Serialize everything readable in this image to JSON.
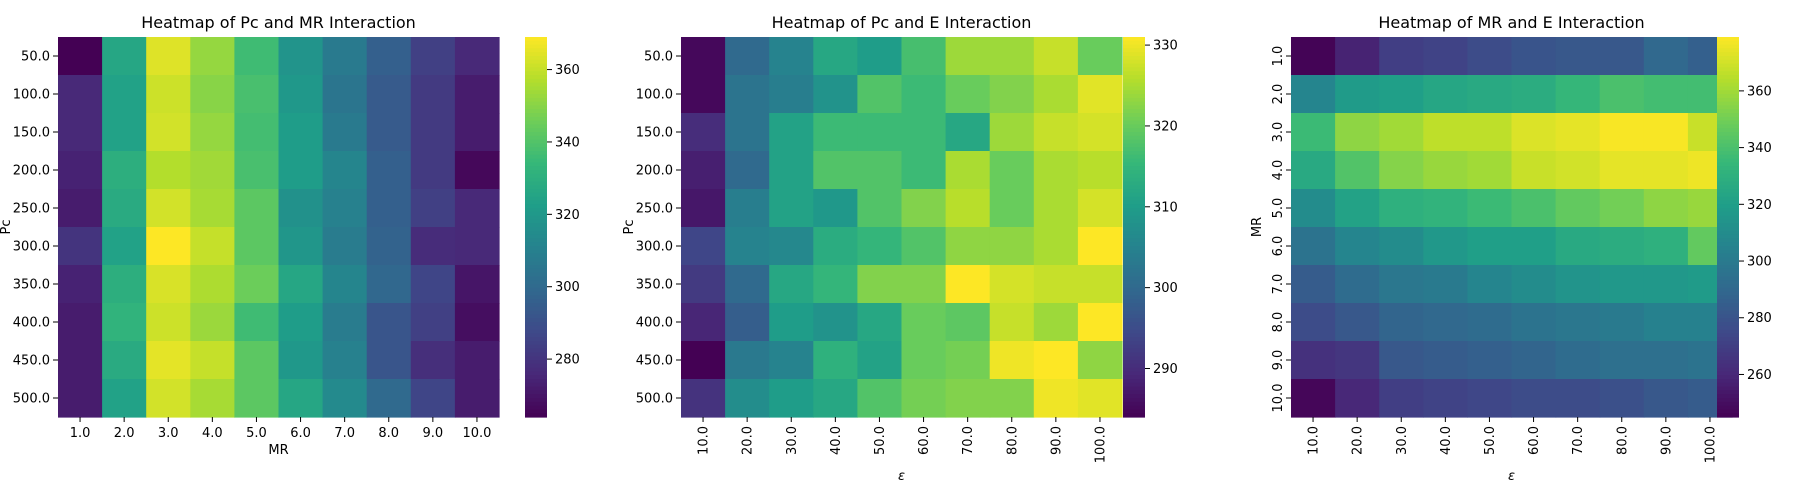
{
  "colormap": [
    "#440154",
    "#482878",
    "#3e4989",
    "#31688e",
    "#26828e",
    "#1f9e89",
    "#35b779",
    "#6ece58",
    "#b5de2b",
    "#fde725"
  ],
  "chart_data": [
    {
      "type": "heatmap",
      "title": "Heatmap of Pc and MR Interaction",
      "xlabel": "MR",
      "ylabel": "Pc",
      "x_labels": [
        "1.0",
        "2.0",
        "3.0",
        "4.0",
        "5.0",
        "6.0",
        "7.0",
        "8.0",
        "9.0",
        "10.0"
      ],
      "y_labels": [
        "50.0",
        "100.0",
        "150.0",
        "200.0",
        "250.0",
        "300.0",
        "350.0",
        "400.0",
        "450.0",
        "500.0"
      ],
      "x_tick_rotation": "horizontal",
      "vmin": 264,
      "vmax": 369,
      "colorbar_ticks": [
        280,
        300,
        320,
        340,
        360
      ],
      "values": [
        [
          264,
          326,
          364,
          352,
          336,
          318,
          307,
          296,
          284,
          276
        ],
        [
          276,
          324,
          361,
          350,
          338,
          320,
          305,
          294,
          282,
          272
        ],
        [
          276,
          324,
          362,
          352,
          337,
          322,
          307,
          294,
          282,
          272
        ],
        [
          274,
          330,
          357,
          354,
          338,
          322,
          312,
          296,
          282,
          266
        ],
        [
          272,
          328,
          362,
          355,
          342,
          317,
          310,
          296,
          284,
          276
        ],
        [
          280,
          324,
          369,
          360,
          342,
          319,
          308,
          297,
          277,
          276
        ],
        [
          274,
          330,
          363,
          356,
          345,
          326,
          312,
          299,
          286,
          270
        ],
        [
          272,
          332,
          361,
          353,
          336,
          322,
          308,
          292,
          284,
          268
        ],
        [
          272,
          328,
          365,
          360,
          342,
          320,
          310,
          292,
          278,
          272
        ],
        [
          272,
          324,
          362,
          355,
          342,
          326,
          314,
          300,
          286,
          272
        ]
      ]
    },
    {
      "type": "heatmap",
      "title": "Heatmap of Pc and E Interaction",
      "xlabel": "ε",
      "ylabel": "Pc",
      "x_labels": [
        "10.0",
        "20.0",
        "30.0",
        "40.0",
        "50.0",
        "60.0",
        "70.0",
        "80.0",
        "90.0",
        "100.0"
      ],
      "y_labels": [
        "50.0",
        "100.0",
        "150.0",
        "200.0",
        "250.0",
        "300.0",
        "350.0",
        "400.0",
        "450.0",
        "500.0"
      ],
      "x_tick_rotation": "vertical",
      "vmin": 284,
      "vmax": 331,
      "colorbar_ticks": [
        290,
        300,
        310,
        320,
        330
      ],
      "values": [
        [
          285,
          300,
          305,
          312,
          310,
          317,
          324,
          324,
          327,
          320
        ],
        [
          285,
          302,
          304,
          308,
          318,
          316,
          320,
          322,
          325,
          329
        ],
        [
          290,
          302,
          311,
          316,
          316,
          316,
          312,
          324,
          327,
          328
        ],
        [
          288,
          300,
          311,
          318,
          318,
          316,
          325,
          320,
          325,
          326
        ],
        [
          287,
          304,
          311,
          309,
          318,
          322,
          326,
          320,
          325,
          328
        ],
        [
          294,
          305,
          306,
          313,
          315,
          318,
          323,
          323,
          325,
          331
        ],
        [
          292,
          300,
          312,
          315,
          322,
          322,
          331,
          328,
          327,
          327
        ],
        [
          289,
          298,
          310,
          308,
          312,
          320,
          319,
          327,
          324,
          331
        ],
        [
          284,
          303,
          305,
          314,
          311,
          320,
          321,
          330,
          331,
          323
        ],
        [
          291,
          307,
          310,
          312,
          318,
          321,
          322,
          322,
          330,
          329
        ]
      ]
    },
    {
      "type": "heatmap",
      "title": "Heatmap of MR and E Interaction",
      "xlabel": "ε",
      "ylabel": "MR",
      "x_labels": [
        "10.0",
        "20.0",
        "30.0",
        "40.0",
        "50.0",
        "60.0",
        "70.0",
        "80.0",
        "90.0",
        "100.0"
      ],
      "y_labels": [
        "1.0",
        "2.0",
        "3.0",
        "4.0",
        "5.0",
        "6.0",
        "7.0",
        "8.0",
        "9.0",
        "10.0"
      ],
      "x_tick_rotation": "vertical",
      "vmin": 245,
      "vmax": 379,
      "colorbar_ticks": [
        260,
        280,
        300,
        320,
        340,
        360
      ],
      "values": [
        [
          246,
          258,
          270,
          272,
          276,
          280,
          282,
          282,
          290,
          286
        ],
        [
          306,
          318,
          320,
          324,
          326,
          328,
          334,
          340,
          338,
          338
        ],
        [
          336,
          356,
          360,
          366,
          366,
          372,
          374,
          378,
          378,
          368
        ],
        [
          326,
          342,
          354,
          358,
          360,
          368,
          370,
          374,
          374,
          376
        ],
        [
          310,
          322,
          330,
          332,
          336,
          340,
          346,
          350,
          356,
          358
        ],
        [
          296,
          306,
          310,
          316,
          320,
          320,
          326,
          328,
          330,
          346
        ],
        [
          284,
          292,
          298,
          300,
          306,
          310,
          314,
          316,
          316,
          318
        ],
        [
          276,
          282,
          288,
          290,
          292,
          296,
          298,
          300,
          304,
          304
        ],
        [
          264,
          266,
          282,
          284,
          286,
          288,
          292,
          294,
          294,
          296
        ],
        [
          247,
          260,
          270,
          272,
          274,
          276,
          276,
          278,
          282,
          284
        ]
      ]
    }
  ]
}
